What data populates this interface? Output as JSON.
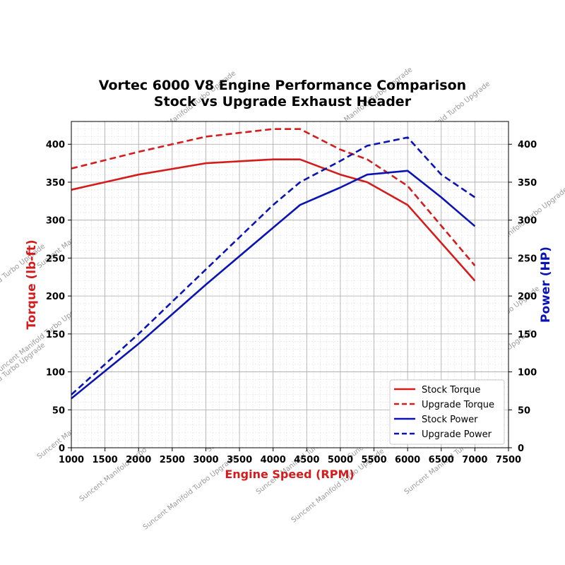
{
  "chart_data": {
    "type": "line",
    "title": "Vortec 6000 V8 Engine Performance Comparison",
    "subtitle": "Stock vs Upgrade Exhaust Header",
    "xlabel": "Engine Speed (RPM)",
    "ylabel_left": "Torque (lb-ft)",
    "ylabel_right": "Power (HP)",
    "xlim": [
      1000,
      7500
    ],
    "ylim_left": [
      0,
      430
    ],
    "ylim_right": [
      0,
      430
    ],
    "x_ticks": [
      1000,
      1500,
      2000,
      2500,
      3000,
      3500,
      4000,
      4500,
      5000,
      5500,
      6000,
      6500,
      7000,
      7500
    ],
    "y_ticks": [
      0,
      50,
      100,
      150,
      200,
      250,
      300,
      350,
      400
    ],
    "grid": true,
    "minor_grid": true,
    "legend_position": "lower-right",
    "colors": {
      "torque_axis": "#d41c1c",
      "power_axis": "#0a14b4",
      "stock_torque": "#d41c1c",
      "upgrade_torque": "#d41c1c",
      "stock_power": "#0a14b4",
      "upgrade_power": "#0a14b4"
    },
    "series": [
      {
        "name": "Stock Torque",
        "axis": "left",
        "style": "solid",
        "color": "#d41c1c",
        "x": [
          1000,
          2000,
          3000,
          4000,
          4400,
          5000,
          5400,
          6000,
          7000
        ],
        "values": [
          340,
          360,
          375,
          380,
          380,
          360,
          350,
          320,
          220
        ]
      },
      {
        "name": "Upgrade Torque",
        "axis": "left",
        "style": "dashed",
        "color": "#d41c1c",
        "x": [
          1000,
          2000,
          3000,
          4000,
          4400,
          5000,
          5400,
          6000,
          7000
        ],
        "values": [
          368,
          390,
          410,
          420,
          420,
          393,
          380,
          345,
          240
        ]
      },
      {
        "name": "Stock Power",
        "axis": "right",
        "style": "solid",
        "color": "#0a14b4",
        "x": [
          1000,
          2000,
          3000,
          4000,
          4400,
          5000,
          5400,
          6000,
          6500,
          7000
        ],
        "values": [
          65,
          137,
          215,
          290,
          320,
          343,
          360,
          365,
          330,
          292
        ]
      },
      {
        "name": "Upgrade Power",
        "axis": "right",
        "style": "dashed",
        "color": "#0a14b4",
        "x": [
          1000,
          2000,
          3000,
          4000,
          4400,
          5000,
          5400,
          6000,
          6500,
          7000
        ],
        "values": [
          70,
          150,
          235,
          320,
          350,
          378,
          398,
          409,
          360,
          330
        ]
      }
    ]
  },
  "watermark": "Suncent Manifold Turbo Upgrade"
}
